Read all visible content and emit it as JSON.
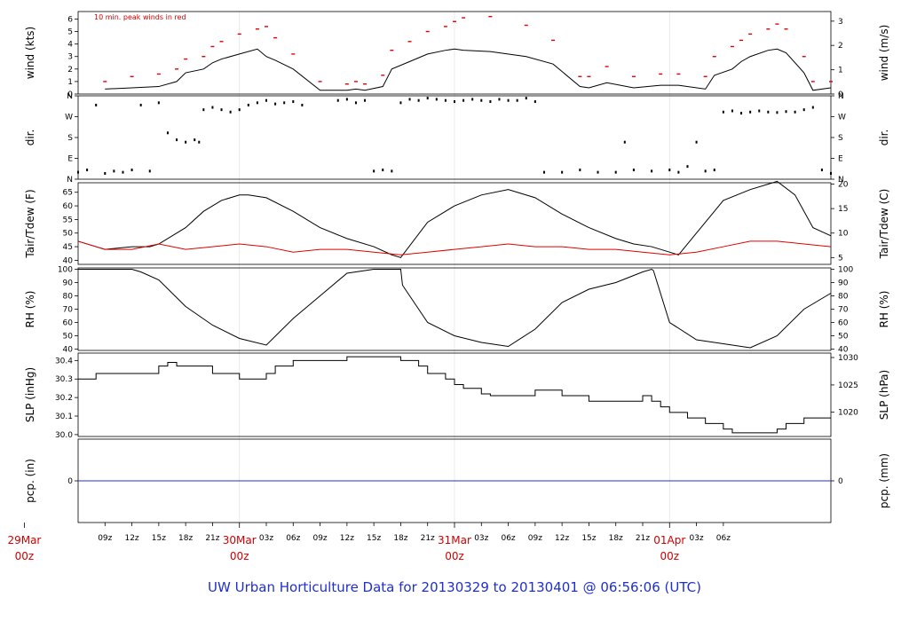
{
  "footer_title": "UW Urban Horticulture Data for 20130329  to  20130401 @ 06:56:06  (UTC)",
  "colors": {
    "primary": "#000000",
    "peak": "#e00000",
    "tdew": "#e00000",
    "pcp": "#2030d0",
    "title": "#1f2fd0",
    "date": "#d00000"
  },
  "chart_data": [
    {
      "id": "wind",
      "type": "line",
      "ylabel": "wind (kts)",
      "ylabel_right": "wind (m/s)",
      "annotation": "10 min. peak winds in red",
      "ylim": [
        0,
        6.6
      ],
      "yticks": [
        0,
        1,
        2,
        3,
        4,
        5,
        6
      ],
      "right_ticks": [
        {
          "label": "0",
          "value": 0
        },
        {
          "label": "1",
          "value": 1.94
        },
        {
          "label": "2",
          "value": 3.89
        },
        {
          "label": "3",
          "value": 5.83
        }
      ],
      "series": [
        {
          "color": "#000000",
          "x_hours": [
            9,
            12,
            15,
            17,
            18,
            20,
            21,
            22,
            24,
            26,
            27,
            28,
            30,
            33,
            36,
            37,
            38,
            40,
            41,
            43,
            45,
            47,
            48,
            49,
            52,
            56,
            59,
            62,
            63,
            65,
            68,
            71,
            73,
            76,
            77,
            79,
            80,
            81,
            83,
            84,
            85,
            87,
            88,
            90
          ],
          "values": [
            0.4,
            0.5,
            0.6,
            1.0,
            1.7,
            2.0,
            2.5,
            2.8,
            3.2,
            3.6,
            3.0,
            2.7,
            2.0,
            0.3,
            0.3,
            0.4,
            0.3,
            0.6,
            2.0,
            2.6,
            3.2,
            3.5,
            3.6,
            3.5,
            3.4,
            3.0,
            2.4,
            0.6,
            0.5,
            0.9,
            0.5,
            0.7,
            0.7,
            0.4,
            1.5,
            2.0,
            2.6,
            3.0,
            3.5,
            3.6,
            3.3,
            1.7,
            0.3,
            0.5
          ]
        },
        {
          "color": "#e00000",
          "x_hours": [
            9,
            12,
            15,
            17,
            18,
            20,
            21,
            22,
            24,
            26,
            27,
            28,
            30,
            33,
            36,
            37,
            38,
            40,
            41,
            43,
            45,
            47,
            48,
            49,
            52,
            56,
            59,
            62,
            63,
            65,
            68,
            71,
            73,
            76,
            77,
            79,
            80,
            81,
            83,
            84,
            85,
            87,
            88,
            90
          ],
          "values": [
            1.0,
            1.4,
            1.6,
            2.0,
            2.8,
            3.0,
            3.8,
            4.2,
            4.8,
            5.2,
            5.4,
            4.5,
            3.2,
            1.0,
            0.8,
            1.0,
            0.8,
            1.5,
            3.5,
            4.2,
            5.0,
            5.4,
            5.8,
            6.1,
            6.2,
            5.5,
            4.3,
            1.4,
            1.4,
            2.2,
            1.4,
            1.6,
            1.6,
            1.4,
            3.0,
            3.8,
            4.3,
            4.8,
            5.2,
            5.6,
            5.2,
            3.0,
            1.0,
            1.0
          ]
        }
      ]
    },
    {
      "id": "dir",
      "type": "scatter",
      "ylabel": "dir.",
      "ylabel_right": "dir.",
      "ylim": [
        0,
        360
      ],
      "ytick_labels": [
        "N",
        "E",
        "S",
        "W",
        "N"
      ],
      "ytick_values": [
        0,
        90,
        180,
        270,
        360
      ],
      "series": [
        {
          "color": "#000000",
          "x_hours": [
            6,
            7,
            8,
            9,
            10,
            11,
            12,
            13,
            14,
            15,
            16,
            17,
            18,
            19,
            19.5,
            20,
            21,
            22,
            23,
            24,
            25,
            26,
            27,
            28,
            29,
            30,
            31,
            35,
            36,
            37,
            38,
            39,
            40,
            41,
            42,
            43,
            44,
            45,
            46,
            47,
            48,
            49,
            50,
            51,
            52,
            53,
            54,
            55,
            56,
            57,
            58,
            60,
            62,
            64,
            66,
            67,
            68,
            70,
            72,
            73,
            74,
            75,
            76,
            77,
            78,
            79,
            80,
            81,
            82,
            83,
            84,
            85,
            86,
            87,
            88,
            89,
            90
          ],
          "values": [
            30,
            40,
            320,
            25,
            35,
            30,
            40,
            320,
            35,
            330,
            200,
            170,
            160,
            170,
            160,
            300,
            310,
            300,
            290,
            300,
            320,
            330,
            340,
            325,
            330,
            335,
            320,
            340,
            345,
            330,
            340,
            35,
            40,
            35,
            330,
            345,
            340,
            350,
            345,
            340,
            335,
            340,
            345,
            340,
            335,
            345,
            340,
            340,
            350,
            335,
            30,
            30,
            40,
            30,
            30,
            160,
            40,
            35,
            40,
            30,
            55,
            160,
            35,
            40,
            290,
            295,
            285,
            290,
            295,
            290,
            288,
            292,
            290,
            300,
            310,
            40,
            25
          ]
        }
      ]
    },
    {
      "id": "temp",
      "type": "line",
      "ylabel": "Tair/Tdew (F)",
      "ylabel_right": "Tair/Tdew (C)",
      "ylim": [
        38.5,
        68.5
      ],
      "yticks": [
        40,
        45,
        50,
        55,
        60,
        65
      ],
      "right_ticks": [
        {
          "label": "5",
          "value": 41
        },
        {
          "label": "10",
          "value": 50
        },
        {
          "label": "15",
          "value": 59
        },
        {
          "label": "20",
          "value": 68
        }
      ],
      "series": [
        {
          "color": "#000000",
          "x_hours": [
            6,
            8,
            9,
            12,
            14,
            15,
            18,
            20,
            21,
            22,
            24,
            25,
            27,
            30,
            33,
            36,
            39,
            41,
            42,
            45,
            48,
            51,
            54,
            57,
            60,
            63,
            66,
            68,
            70,
            72,
            73,
            75,
            78,
            81,
            84,
            86,
            88,
            90
          ],
          "values": [
            47,
            45,
            44,
            45,
            45,
            46,
            52,
            58,
            60,
            62,
            64,
            64,
            63,
            58,
            52,
            48,
            45,
            42,
            41,
            54,
            60,
            64,
            66,
            63,
            57,
            52,
            48,
            46,
            45,
            43,
            42,
            50,
            62,
            66,
            69,
            64,
            52,
            49
          ]
        },
        {
          "color": "#e00000",
          "x_hours": [
            6,
            9,
            12,
            15,
            18,
            21,
            24,
            27,
            30,
            33,
            36,
            39,
            42,
            45,
            48,
            51,
            54,
            57,
            60,
            63,
            66,
            69,
            72,
            75,
            78,
            81,
            84,
            87,
            90
          ],
          "values": [
            47,
            44,
            44,
            46,
            44,
            45,
            46,
            45,
            43,
            44,
            44,
            43,
            42,
            43,
            44,
            45,
            46,
            45,
            45,
            44,
            44,
            43,
            42,
            43,
            45,
            47,
            47,
            46,
            45
          ]
        }
      ]
    },
    {
      "id": "rh",
      "type": "line",
      "ylabel": "RH (%)",
      "ylabel_right": "RH (%)",
      "ylim": [
        39,
        101
      ],
      "yticks": [
        40,
        50,
        60,
        70,
        80,
        90,
        100
      ],
      "right_ticks": [
        {
          "label": "40",
          "value": 40
        },
        {
          "label": "50",
          "value": 50
        },
        {
          "label": "60",
          "value": 60
        },
        {
          "label": "70",
          "value": 70
        },
        {
          "label": "80",
          "value": 80
        },
        {
          "label": "90",
          "value": 90
        },
        {
          "label": "100",
          "value": 100
        }
      ],
      "series": [
        {
          "color": "#000000",
          "x_hours": [
            6,
            12,
            13,
            15,
            18,
            21,
            24,
            27,
            30,
            33,
            36,
            39,
            42,
            42.2,
            45,
            48,
            51,
            54,
            57,
            60,
            63,
            66,
            69,
            70,
            70.2,
            72,
            75,
            78,
            81,
            84,
            87,
            90
          ],
          "values": [
            100,
            100,
            98,
            92,
            72,
            58,
            48,
            43,
            63,
            80,
            97,
            100,
            100,
            88,
            60,
            50,
            45,
            42,
            55,
            75,
            85,
            90,
            98,
            100,
            99,
            60,
            47,
            44,
            41,
            50,
            70,
            82
          ]
        }
      ]
    },
    {
      "id": "slp",
      "type": "line",
      "ylabel": "SLP (inHg)",
      "ylabel_right": "SLP (hPa)",
      "ylim": [
        29.99,
        30.44
      ],
      "yticks": [
        30.0,
        30.1,
        30.2,
        30.3,
        30.4
      ],
      "ytick_labels": [
        "30.0",
        "30.1",
        "30.2",
        "30.3",
        "30.4"
      ],
      "right_ticks": [
        {
          "label": "1020",
          "value": 30.121
        },
        {
          "label": "1025",
          "value": 30.268
        },
        {
          "label": "1030",
          "value": 30.416
        }
      ],
      "series": [
        {
          "color": "#000000",
          "x_hours": [
            6,
            8,
            12,
            15,
            16,
            17,
            19,
            21,
            24,
            26,
            27,
            28,
            30,
            36,
            42,
            44,
            45,
            47,
            48,
            49,
            51,
            52,
            54,
            57,
            60,
            63,
            66,
            69,
            70,
            71,
            72,
            73,
            74,
            76,
            78,
            79,
            80,
            81,
            84,
            85,
            86,
            87,
            88,
            90
          ],
          "values": [
            30.3,
            30.33,
            30.33,
            30.37,
            30.39,
            30.37,
            30.37,
            30.33,
            30.3,
            30.3,
            30.33,
            30.37,
            30.4,
            30.42,
            30.4,
            30.37,
            30.33,
            30.3,
            30.27,
            30.25,
            30.22,
            30.21,
            30.21,
            30.24,
            30.21,
            30.18,
            30.18,
            30.21,
            30.18,
            30.15,
            30.12,
            30.12,
            30.09,
            30.06,
            30.03,
            30.01,
            30.01,
            30.01,
            30.03,
            30.06,
            30.06,
            30.09,
            30.09,
            30.09
          ]
        }
      ]
    },
    {
      "id": "pcp",
      "type": "line",
      "ylabel": "pcp. (in)",
      "ylabel_right": "pcp. (mm)",
      "ylim": [
        -1,
        1
      ],
      "yticks": [
        0
      ],
      "ytick_labels": [
        "0"
      ],
      "right_ticks": [
        {
          "label": "0",
          "value": 0
        }
      ],
      "series": [
        {
          "color": "#2030d0",
          "x_hours": [
            6,
            90
          ],
          "values": [
            0,
            0
          ]
        }
      ]
    }
  ],
  "x_axis": {
    "ticks": [
      {
        "hour": 9,
        "label": "09z"
      },
      {
        "hour": 12,
        "label": "12z"
      },
      {
        "hour": 15,
        "label": "15z"
      },
      {
        "hour": 18,
        "label": "18z"
      },
      {
        "hour": 21,
        "label": "21z"
      },
      {
        "hour": 27,
        "label": "03z"
      },
      {
        "hour": 30,
        "label": "06z"
      },
      {
        "hour": 33,
        "label": "09z"
      },
      {
        "hour": 36,
        "label": "12z"
      },
      {
        "hour": 39,
        "label": "15z"
      },
      {
        "hour": 42,
        "label": "18z"
      },
      {
        "hour": 45,
        "label": "21z"
      },
      {
        "hour": 51,
        "label": "03z"
      },
      {
        "hour": 54,
        "label": "06z"
      },
      {
        "hour": 57,
        "label": "09z"
      },
      {
        "hour": 60,
        "label": "12z"
      },
      {
        "hour": 63,
        "label": "15z"
      },
      {
        "hour": 66,
        "label": "18z"
      },
      {
        "hour": 69,
        "label": "21z"
      },
      {
        "hour": 75,
        "label": "03z"
      },
      {
        "hour": 78,
        "label": "06z"
      }
    ],
    "dates": [
      {
        "hour": 0,
        "label": "29Mar",
        "sub": "00z"
      },
      {
        "hour": 24,
        "label": "30Mar",
        "sub": "00z"
      },
      {
        "hour": 48,
        "label": "31Mar",
        "sub": "00z"
      },
      {
        "hour": 72,
        "label": "01Apr",
        "sub": "00z"
      }
    ]
  }
}
